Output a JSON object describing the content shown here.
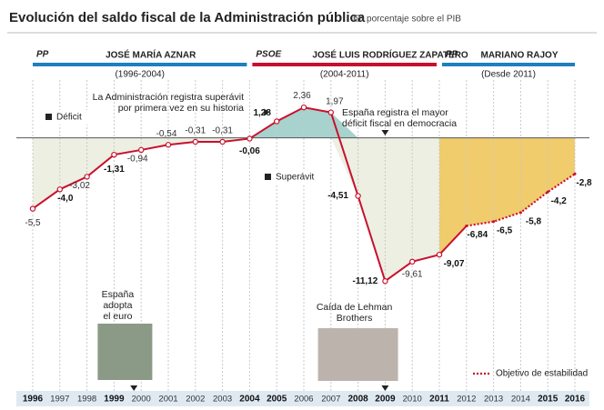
{
  "chart_data": {
    "type": "line",
    "title": "Evolución del saldo fiscal de la Administración pública",
    "subtitle": "En porcentaje sobre el PIB",
    "categories": [
      "1996",
      "1997",
      "1998",
      "1999",
      "2000",
      "2001",
      "2002",
      "2003",
      "2004",
      "2005",
      "2006",
      "2007",
      "2008",
      "2009",
      "2010",
      "2011",
      "2012",
      "2013",
      "2014",
      "2015",
      "2016"
    ],
    "series": [
      {
        "name": "Saldo fiscal",
        "color": "#c8102e",
        "values": [
          -5.5,
          -4.0,
          -3.02,
          -1.31,
          -0.94,
          -0.54,
          -0.31,
          -0.31,
          -0.06,
          1.28,
          2.36,
          1.97,
          -4.51,
          -11.12,
          -9.61,
          -9.07,
          null,
          null,
          null,
          null,
          null
        ],
        "value_labels": [
          "-5,5",
          "-4,0",
          "-3,02",
          "-1,31",
          "-0,94",
          "-0,54",
          "-0,31",
          "-0,31",
          "-0,06",
          "1,28",
          "2,36",
          "1,97",
          "-4,51",
          "-11,12",
          "-9,61",
          "-9,07",
          null,
          null,
          null,
          null,
          null
        ]
      },
      {
        "name": "Objetivo de estabilidad",
        "color": "#c8102e",
        "values": [
          null,
          null,
          null,
          null,
          null,
          null,
          null,
          null,
          null,
          null,
          null,
          null,
          null,
          null,
          null,
          null,
          -6.84,
          -6.5,
          -5.8,
          -4.2,
          -2.8
        ],
        "value_labels": [
          null,
          null,
          null,
          null,
          null,
          null,
          null,
          null,
          null,
          null,
          null,
          null,
          null,
          null,
          null,
          null,
          "-6,84",
          "-6,5",
          "-5,8",
          "-4,2",
          "-2,8"
        ]
      }
    ],
    "ylim": [
      -19.5,
      3.5
    ],
    "periods": [
      {
        "logo": "PP",
        "leader": "JOSÉ MARÍA AZNAR",
        "years": "(1996-2004)",
        "color": "#1f7fc0"
      },
      {
        "logo": "PSOE",
        "leader": "JOSÉ LUIS RODRÍGUEZ ZAPATERO",
        "years": "(2004-2011)",
        "color": "#c8102e"
      },
      {
        "logo": "PP",
        "leader": "MARIANO RAJOY",
        "years": "(Desde 2011)",
        "color": "#1f7fc0"
      }
    ],
    "annotations": {
      "surplus": [
        "La Administración registra superávit",
        "por primera vez en su historia"
      ],
      "max_deficit": [
        "España registra el mayor",
        "déficit fiscal en democracia"
      ],
      "euro": [
        "España",
        "adopta",
        "el euro"
      ],
      "lehman": [
        "Caída de Lehman",
        "Brothers"
      ]
    },
    "legend": {
      "deficit": "Déficit",
      "surplus": "Superávit"
    }
  }
}
